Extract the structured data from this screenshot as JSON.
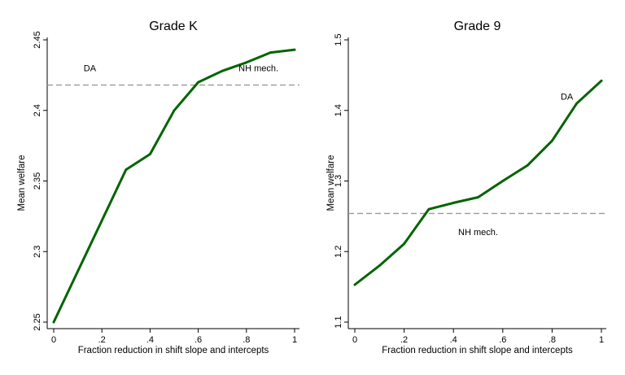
{
  "colors": {
    "line": "#006400",
    "reference": "#9a9a9a",
    "axis": "#000000",
    "background": "#ffffff"
  },
  "chart_data": [
    {
      "type": "line",
      "title": "Grade K",
      "xlabel": "Fraction reduction in shift slope and intercepts",
      "ylabel": "Mean welfare",
      "xlim": [
        0,
        1
      ],
      "ylim": [
        2.25,
        2.45
      ],
      "x_ticks": [
        0,
        0.2,
        0.4,
        0.6,
        0.8,
        1
      ],
      "x_tick_labels": [
        "0",
        ".2",
        ".4",
        ".6",
        ".8",
        "1"
      ],
      "y_ticks": [
        2.25,
        2.3,
        2.35,
        2.4,
        2.45
      ],
      "y_tick_labels": [
        "2.25",
        "2.3",
        "2.35",
        "2.4",
        "2.45"
      ],
      "grid": false,
      "series": [
        {
          "x": [
            0,
            0.1,
            0.2,
            0.3,
            0.4,
            0.5,
            0.6,
            0.7,
            0.8,
            0.9,
            1.0
          ],
          "y": [
            2.25,
            2.286,
            2.322,
            2.358,
            2.369,
            2.4,
            2.42,
            2.428,
            2.434,
            2.441,
            2.443
          ]
        }
      ],
      "reference_line": {
        "y": 2.418,
        "style": "dashed"
      },
      "annotations": [
        {
          "text": "DA",
          "x": 0.15,
          "y": 2.43
        },
        {
          "text": "NH mech.",
          "x": 0.85,
          "y": 2.43
        }
      ]
    },
    {
      "type": "line",
      "title": "Grade 9",
      "xlabel": "Fraction reduction in shift slope and intercepts",
      "ylabel": "Mean welfare",
      "xlim": [
        0,
        1
      ],
      "ylim": [
        1.1,
        1.5
      ],
      "x_ticks": [
        0,
        0.2,
        0.4,
        0.6,
        0.8,
        1
      ],
      "x_tick_labels": [
        "0",
        ".2",
        ".4",
        ".6",
        ".8",
        "1"
      ],
      "y_ticks": [
        1.1,
        1.2,
        1.3,
        1.4,
        1.5
      ],
      "y_tick_labels": [
        "1.1",
        "1.2",
        "1.3",
        "1.4",
        "1.5"
      ],
      "grid": false,
      "series": [
        {
          "x": [
            0,
            0.1,
            0.2,
            0.3,
            0.4,
            0.5,
            0.6,
            0.7,
            0.8,
            0.9,
            1.0
          ],
          "y": [
            1.153,
            1.18,
            1.211,
            1.26,
            1.269,
            1.277,
            1.3,
            1.322,
            1.357,
            1.41,
            1.442
          ]
        }
      ],
      "reference_line": {
        "y": 1.254,
        "style": "dashed"
      },
      "annotations": [
        {
          "text": "DA",
          "x": 0.86,
          "y": 1.42
        },
        {
          "text": "NH mech.",
          "x": 0.5,
          "y": 1.228
        }
      ]
    }
  ]
}
